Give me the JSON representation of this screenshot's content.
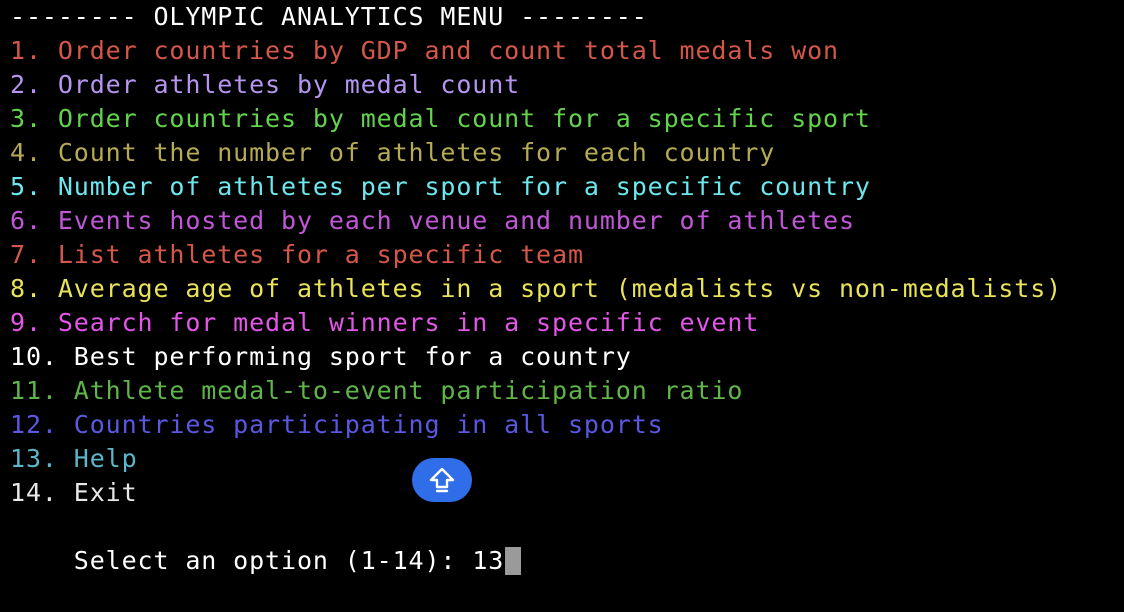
{
  "terminal": {
    "header": "-------- OLYMPIC ANALYTICS MENU --------",
    "header_color": "#ffffff",
    "menu_items": [
      {
        "text": "1. Order countries by GDP and count total medals won",
        "color": "#d4574a"
      },
      {
        "text": "2. Order athletes by medal count",
        "color": "#b595f0"
      },
      {
        "text": "3. Order countries by medal count for a specific sport",
        "color": "#63d24d"
      },
      {
        "text": "4. Count the number of athletes for each country",
        "color": "#b5ab55"
      },
      {
        "text": "5. Number of athletes per sport for a specific country",
        "color": "#6ee6ee"
      },
      {
        "text": "6. Events hosted by each venue and number of athletes",
        "color": "#c156d8"
      },
      {
        "text": "7. List athletes for a specific team",
        "color": "#d4574a"
      },
      {
        "text": "8. Average age of athletes in a sport (medalists vs non-medalists)",
        "color": "#e9e35a"
      },
      {
        "text": "9. Search for medal winners in a specific event",
        "color": "#e256e8"
      },
      {
        "text": "10. Best performing sport for a country",
        "color": "#ffffff"
      },
      {
        "text": "11. Athlete medal-to-event participation ratio",
        "color": "#5fb54a"
      },
      {
        "text": "12. Countries participating in all sports",
        "color": "#5a57e0"
      },
      {
        "text": "13. Help",
        "color": "#5cb5c9"
      },
      {
        "text": "14. Exit",
        "color": "#e8e8e8"
      }
    ],
    "prompt": "Select an option (1-14): ",
    "input_value": "13",
    "prompt_color": "#ffffff"
  },
  "scroll_button": {
    "icon": "arrow-up-icon",
    "color": "#2f6ee8"
  }
}
